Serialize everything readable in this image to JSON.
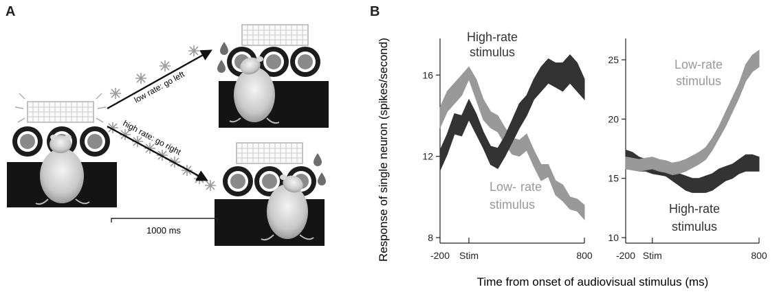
{
  "panels": {
    "a_label": "A",
    "b_label": "B"
  },
  "schematic": {
    "upper_arrow_label": "low rate: go left",
    "lower_arrow_label": "high rate: go right",
    "scale_bar_label": "1000 ms",
    "icons": [
      "rat-icon",
      "led-panel-icon",
      "nose-port-icon",
      "water-drop-icon",
      "flash-icon"
    ]
  },
  "shared_xlabel": "Time from onset of audiovisual stimulus (ms)",
  "chart_data": [
    {
      "type": "area",
      "title": "",
      "ylabel": "Response of single neuron (spikes/second)",
      "xlim": [
        -200,
        800
      ],
      "ylim": [
        8,
        17.8
      ],
      "xticks": [
        -200,
        0,
        800
      ],
      "xtick_labels": [
        "-200",
        "Stim",
        "800"
      ],
      "yticks": [
        8,
        12,
        16
      ],
      "grid": false,
      "x": [
        -200,
        -150,
        -100,
        -50,
        0,
        50,
        100,
        150,
        200,
        250,
        300,
        350,
        400,
        450,
        500,
        550,
        600,
        650,
        700,
        750,
        800
      ],
      "series": [
        {
          "name": "High-rate stimulus",
          "color": "#333333",
          "lower": [
            11.3,
            12.1,
            13.1,
            13.0,
            13.8,
            13.1,
            12.4,
            11.6,
            11.4,
            12.0,
            12.7,
            13.4,
            14.0,
            14.8,
            15.2,
            15.6,
            15.4,
            15.2,
            15.6,
            15.2,
            14.8
          ],
          "upper": [
            12.3,
            13.1,
            14.1,
            14.0,
            14.8,
            14.1,
            13.2,
            12.5,
            12.4,
            13.0,
            13.8,
            14.6,
            15.0,
            15.8,
            16.4,
            16.8,
            16.6,
            16.6,
            17.0,
            16.6,
            15.8
          ]
        },
        {
          "name": "Low-rate stimulus",
          "color": "#999999",
          "lower": [
            13.4,
            14.2,
            14.6,
            15.0,
            15.8,
            14.8,
            13.8,
            13.4,
            13.2,
            12.6,
            12.1,
            12.0,
            12.3,
            11.5,
            10.8,
            11.0,
            10.1,
            9.8,
            9.4,
            9.3,
            8.9
          ],
          "upper": [
            14.4,
            15.2,
            15.6,
            16.0,
            16.4,
            15.8,
            14.8,
            14.2,
            14.0,
            13.4,
            12.9,
            12.8,
            13.1,
            12.3,
            11.6,
            11.6,
            10.8,
            10.6,
            10.0,
            9.9,
            9.6
          ]
        }
      ],
      "annotations": [
        {
          "text": "High-rate",
          "series": "High-rate stimulus"
        },
        {
          "text": "stimulus",
          "series": "High-rate stimulus"
        },
        {
          "text": "Low-",
          "series": "Low-rate stimulus"
        },
        {
          "text": "rate",
          "series": "Low-rate stimulus"
        },
        {
          "text": "stimulus",
          "series": "Low-rate stimulus"
        }
      ]
    },
    {
      "type": "area",
      "title": "",
      "ylabel": "",
      "xlim": [
        -200,
        800
      ],
      "ylim": [
        10,
        26.8
      ],
      "xticks": [
        -200,
        0,
        800
      ],
      "xtick_labels": [
        "-200",
        "Stim",
        "800"
      ],
      "yticks": [
        10,
        15,
        20,
        25
      ],
      "grid": false,
      "x": [
        -200,
        -150,
        -100,
        -50,
        0,
        50,
        100,
        150,
        200,
        250,
        300,
        350,
        400,
        450,
        500,
        550,
        600,
        650,
        700,
        750,
        800
      ],
      "series": [
        {
          "name": "High-rate stimulus",
          "color": "#333333",
          "lower": [
            16.0,
            16.0,
            15.6,
            15.6,
            15.4,
            15.3,
            15.2,
            14.8,
            14.4,
            14.0,
            13.8,
            13.8,
            13.8,
            14.0,
            14.4,
            14.8,
            15.0,
            15.4,
            15.6,
            15.6,
            15.6
          ],
          "upper": [
            17.4,
            17.2,
            16.8,
            16.6,
            16.2,
            16.0,
            15.9,
            15.6,
            15.4,
            15.2,
            15.0,
            15.0,
            15.2,
            15.4,
            15.8,
            16.0,
            16.2,
            16.6,
            17.0,
            17.0,
            16.8
          ]
        },
        {
          "name": "Low-rate stimulus",
          "color": "#999999",
          "lower": [
            15.8,
            15.7,
            15.6,
            15.7,
            15.8,
            15.6,
            15.5,
            15.3,
            15.4,
            15.6,
            15.9,
            16.2,
            16.6,
            17.4,
            18.4,
            19.4,
            20.6,
            21.8,
            23.2,
            24.0,
            24.4
          ],
          "upper": [
            16.8,
            16.7,
            16.6,
            16.7,
            16.8,
            16.6,
            16.5,
            16.3,
            16.4,
            16.6,
            16.9,
            17.2,
            17.6,
            18.4,
            19.4,
            20.6,
            21.8,
            23.0,
            24.6,
            25.4,
            25.8
          ]
        }
      ],
      "annotations": [
        {
          "text": "Low-rate",
          "series": "Low-rate stimulus"
        },
        {
          "text": "stimulus",
          "series": "Low-rate stimulus"
        },
        {
          "text": "High-rate",
          "series": "High-rate stimulus"
        },
        {
          "text": "stimulus",
          "series": "High-rate stimulus"
        }
      ]
    }
  ]
}
